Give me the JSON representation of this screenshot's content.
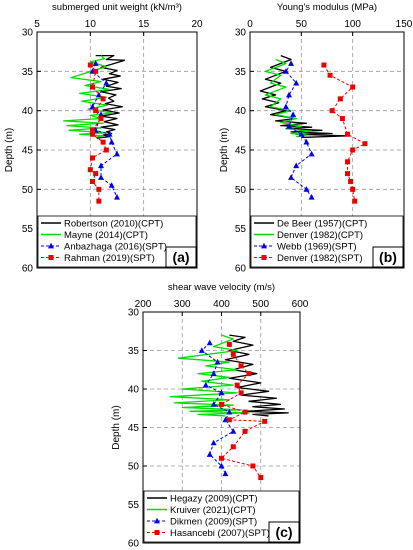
{
  "chart_data": [
    {
      "type": "line",
      "panel_label": "(a)",
      "title": "submerged unit weight (kN/m³)",
      "xlabel": "submerged unit weight (kN/m³)",
      "ylabel": "Depth (m)",
      "xlim": [
        5,
        20
      ],
      "ylim": [
        30,
        60
      ],
      "xticks": [
        "5",
        "10",
        "15",
        "20"
      ],
      "yticks": [
        "30",
        "35",
        "40",
        "45",
        "50",
        "55",
        "60"
      ],
      "grid": "dashed",
      "legend_position": "bottom-left",
      "series": [
        {
          "name": "Robertson (2010)(CPT)",
          "color": "#000000",
          "style": "solid",
          "marker": "none",
          "x": [
            10.5,
            12.2,
            11.5,
            13.2,
            12.0,
            11.0,
            12.5,
            11.8,
            12.8,
            11.2,
            12.6,
            11.5,
            12.9,
            11.0,
            12.4,
            11.7,
            12.2,
            11.4,
            13.0,
            11.2,
            12.7,
            11.0,
            12.5,
            11.3,
            12.6,
            11.0,
            12.3,
            11.5,
            12.0,
            11.2,
            11.8,
            10.6
          ],
          "y": [
            33,
            33.0,
            33.5,
            33.6,
            34.1,
            34.5,
            34.9,
            35.3,
            35.6,
            36.0,
            36.4,
            36.9,
            37.2,
            37.6,
            38.0,
            38.4,
            38.8,
            39.1,
            39.5,
            39.9,
            40.3,
            40.7,
            41.0,
            41.4,
            41.8,
            42.1,
            42.4,
            42.7,
            42.9,
            43.1,
            43.3,
            43.5
          ]
        },
        {
          "name": "Mayne (2014)(CPT)",
          "color": "#00dd00",
          "style": "solid",
          "marker": "none",
          "x": [
            11.0,
            11.3,
            10.0,
            11.5,
            8.2,
            11.0,
            9.5,
            11.8,
            9.0,
            11.5,
            9.2,
            11.6,
            9.8,
            12.0,
            10.0,
            11.0,
            7.5,
            11.2,
            7.8,
            11.0,
            8.0,
            11.5,
            9.0,
            11.2,
            10.5
          ],
          "y": [
            33.0,
            33.4,
            33.8,
            34.4,
            35.8,
            36.3,
            36.8,
            37.3,
            37.8,
            38.3,
            38.8,
            39.3,
            39.8,
            40.3,
            40.6,
            41.0,
            41.3,
            41.6,
            41.9,
            42.2,
            42.5,
            42.8,
            43.0,
            43.2,
            43.4
          ]
        },
        {
          "name": "Anbazhaga (2016)(SPT)",
          "color": "#0000ee",
          "style": "dashed",
          "marker": "triangle",
          "x": [
            10.5,
            10.2,
            11.5,
            10.8,
            10.2,
            11.0,
            10.5,
            11.8,
            12.0,
            12.5,
            11.0,
            11.0,
            12.0,
            12.5
          ],
          "y": [
            34.0,
            35.0,
            36.5,
            38.0,
            39.5,
            40.5,
            42.5,
            43.0,
            44.0,
            45.5,
            47.0,
            48.5,
            49.5,
            51.0
          ]
        },
        {
          "name": "Rahman (2019)(SPT)",
          "color": "#ee0000",
          "style": "dashed",
          "marker": "square",
          "x": [
            10.0,
            10.5,
            10.2,
            11.2,
            10.5,
            11.0,
            10.2,
            10.2,
            11.2,
            11.5,
            10.2,
            10.0,
            10.5,
            10.2,
            10.8,
            10.8
          ],
          "y": [
            34.2,
            35.0,
            37.0,
            38.5,
            40.0,
            41.0,
            42.5,
            43.0,
            44.0,
            45.0,
            46.0,
            47.5,
            48.0,
            49.0,
            50.0,
            51.5
          ]
        }
      ]
    },
    {
      "type": "line",
      "panel_label": "(b)",
      "title": "Young's modulus (MPa)",
      "xlabel": "Young's modulus (MPa)",
      "ylabel": "Depth (m)",
      "xlim": [
        0,
        150
      ],
      "ylim": [
        30,
        60
      ],
      "xticks": [
        "0",
        "50",
        "100",
        "150"
      ],
      "yticks": [
        "30",
        "35",
        "40",
        "45",
        "50",
        "55",
        "60"
      ],
      "grid": "dashed",
      "legend_position": "bottom-left",
      "series": [
        {
          "name": "De Beer (1957)(CPT)",
          "color": "#000000",
          "style": "solid",
          "marker": "none",
          "x": [
            30,
            40,
            20,
            35,
            15,
            30,
            10,
            25,
            12,
            28,
            15,
            35,
            20,
            45,
            25,
            55,
            30,
            60,
            35,
            70,
            40,
            80,
            45,
            95,
            50
          ],
          "y": [
            33.0,
            33.5,
            34.5,
            35.0,
            36.0,
            36.5,
            37.5,
            38.0,
            38.5,
            39.0,
            39.5,
            40.0,
            40.5,
            41.0,
            41.3,
            41.6,
            41.9,
            42.1,
            42.3,
            42.5,
            42.7,
            42.9,
            43.0,
            43.2,
            43.4
          ]
        },
        {
          "name": "Denver (1982)(CPT)",
          "color": "#00dd00",
          "style": "solid",
          "marker": "none",
          "x": [
            25,
            35,
            15,
            30,
            20,
            35,
            15,
            30,
            20,
            40,
            25,
            45,
            30,
            50,
            35,
            60,
            40,
            55,
            45
          ],
          "y": [
            33.5,
            34.0,
            35.0,
            35.5,
            36.5,
            37.0,
            38.0,
            38.5,
            39.5,
            40.0,
            40.5,
            41.0,
            41.5,
            42.0,
            42.3,
            42.6,
            42.9,
            43.1,
            43.3
          ]
        },
        {
          "name": "Webb (1969)(SPT)",
          "color": "#0000ee",
          "style": "dashed",
          "marker": "triangle",
          "x": [
            40,
            35,
            45,
            38,
            35,
            42,
            38,
            50,
            55,
            60,
            45,
            40,
            55,
            60
          ],
          "y": [
            34.0,
            35.0,
            36.5,
            38.0,
            39.5,
            40.5,
            42.0,
            43.0,
            44.0,
            45.5,
            47.0,
            48.5,
            50.0,
            51.0
          ]
        },
        {
          "name": "Denver (1982)(SPT)",
          "color": "#ee0000",
          "style": "dashed",
          "marker": "square",
          "x": [
            72,
            78,
            100,
            88,
            80,
            90,
            95,
            112,
            100,
            95,
            95,
            98,
            100,
            102
          ],
          "y": [
            34.2,
            35.5,
            37.0,
            38.5,
            40.0,
            41.0,
            43.0,
            44.2,
            45.0,
            46.5,
            48.0,
            49.0,
            50.0,
            51.5
          ]
        }
      ]
    },
    {
      "type": "line",
      "panel_label": "(c)",
      "title": "shear wave velocity (m/s)",
      "xlabel": "shear wave velocity (m/s)",
      "ylabel": "Depth (m)",
      "xlim": [
        200,
        600
      ],
      "ylim": [
        30,
        60
      ],
      "xticks": [
        "200",
        "300",
        "400",
        "500",
        "600"
      ],
      "yticks": [
        "30",
        "35",
        "40",
        "45",
        "50",
        "55",
        "60"
      ],
      "grid": "dashed",
      "legend_position": "bottom-left",
      "series": [
        {
          "name": "Hegazy (2009)(CPT)",
          "color": "#000000",
          "style": "solid",
          "marker": "none",
          "x": [
            420,
            460,
            430,
            480,
            420,
            470,
            410,
            480,
            430,
            490,
            420,
            500,
            440,
            520,
            450,
            540,
            470,
            550,
            480,
            560,
            460,
            570,
            480,
            520
          ],
          "y": [
            33.0,
            33.3,
            33.8,
            34.3,
            35.0,
            35.5,
            36.2,
            36.8,
            37.5,
            38.0,
            38.6,
            39.2,
            39.8,
            40.3,
            40.8,
            41.2,
            41.6,
            42.0,
            42.3,
            42.6,
            42.9,
            43.1,
            43.3,
            43.5
          ]
        },
        {
          "name": "Kruiver (2021)(CPT)",
          "color": "#00dd00",
          "style": "solid",
          "marker": "none",
          "x": [
            400,
            430,
            380,
            440,
            290,
            420,
            360,
            440,
            340,
            420,
            350,
            430,
            300,
            440,
            270,
            420,
            280,
            430,
            300,
            450,
            320,
            470,
            340,
            410
          ],
          "y": [
            33.0,
            33.5,
            34.5,
            35.0,
            36.0,
            36.5,
            37.0,
            37.5,
            38.0,
            38.5,
            39.0,
            39.5,
            40.0,
            40.5,
            41.0,
            41.4,
            41.8,
            42.1,
            42.4,
            42.7,
            42.9,
            43.1,
            43.3,
            43.5
          ]
        },
        {
          "name": "Dikmen (2009)(SPT)",
          "color": "#0000ee",
          "style": "dashed",
          "marker": "triangle",
          "x": [
            370,
            350,
            390,
            380,
            360,
            400,
            380,
            420,
            410,
            430,
            380,
            370,
            400,
            410
          ],
          "y": [
            34.0,
            35.0,
            36.5,
            38.0,
            39.5,
            40.5,
            42.0,
            43.0,
            44.0,
            45.5,
            47.0,
            48.5,
            50.0,
            51.0
          ]
        },
        {
          "name": "Hasancebi (2007)(SPT)",
          "color": "#ee0000",
          "style": "dashed",
          "marker": "square",
          "x": [
            420,
            430,
            450,
            470,
            440,
            450,
            400,
            460,
            420,
            510,
            460,
            430,
            400,
            480,
            500
          ],
          "y": [
            34.2,
            35.5,
            37.0,
            38.0,
            39.5,
            40.5,
            42.0,
            43.0,
            44.0,
            44.2,
            45.5,
            47.5,
            49.0,
            50.0,
            51.5
          ]
        }
      ]
    }
  ]
}
